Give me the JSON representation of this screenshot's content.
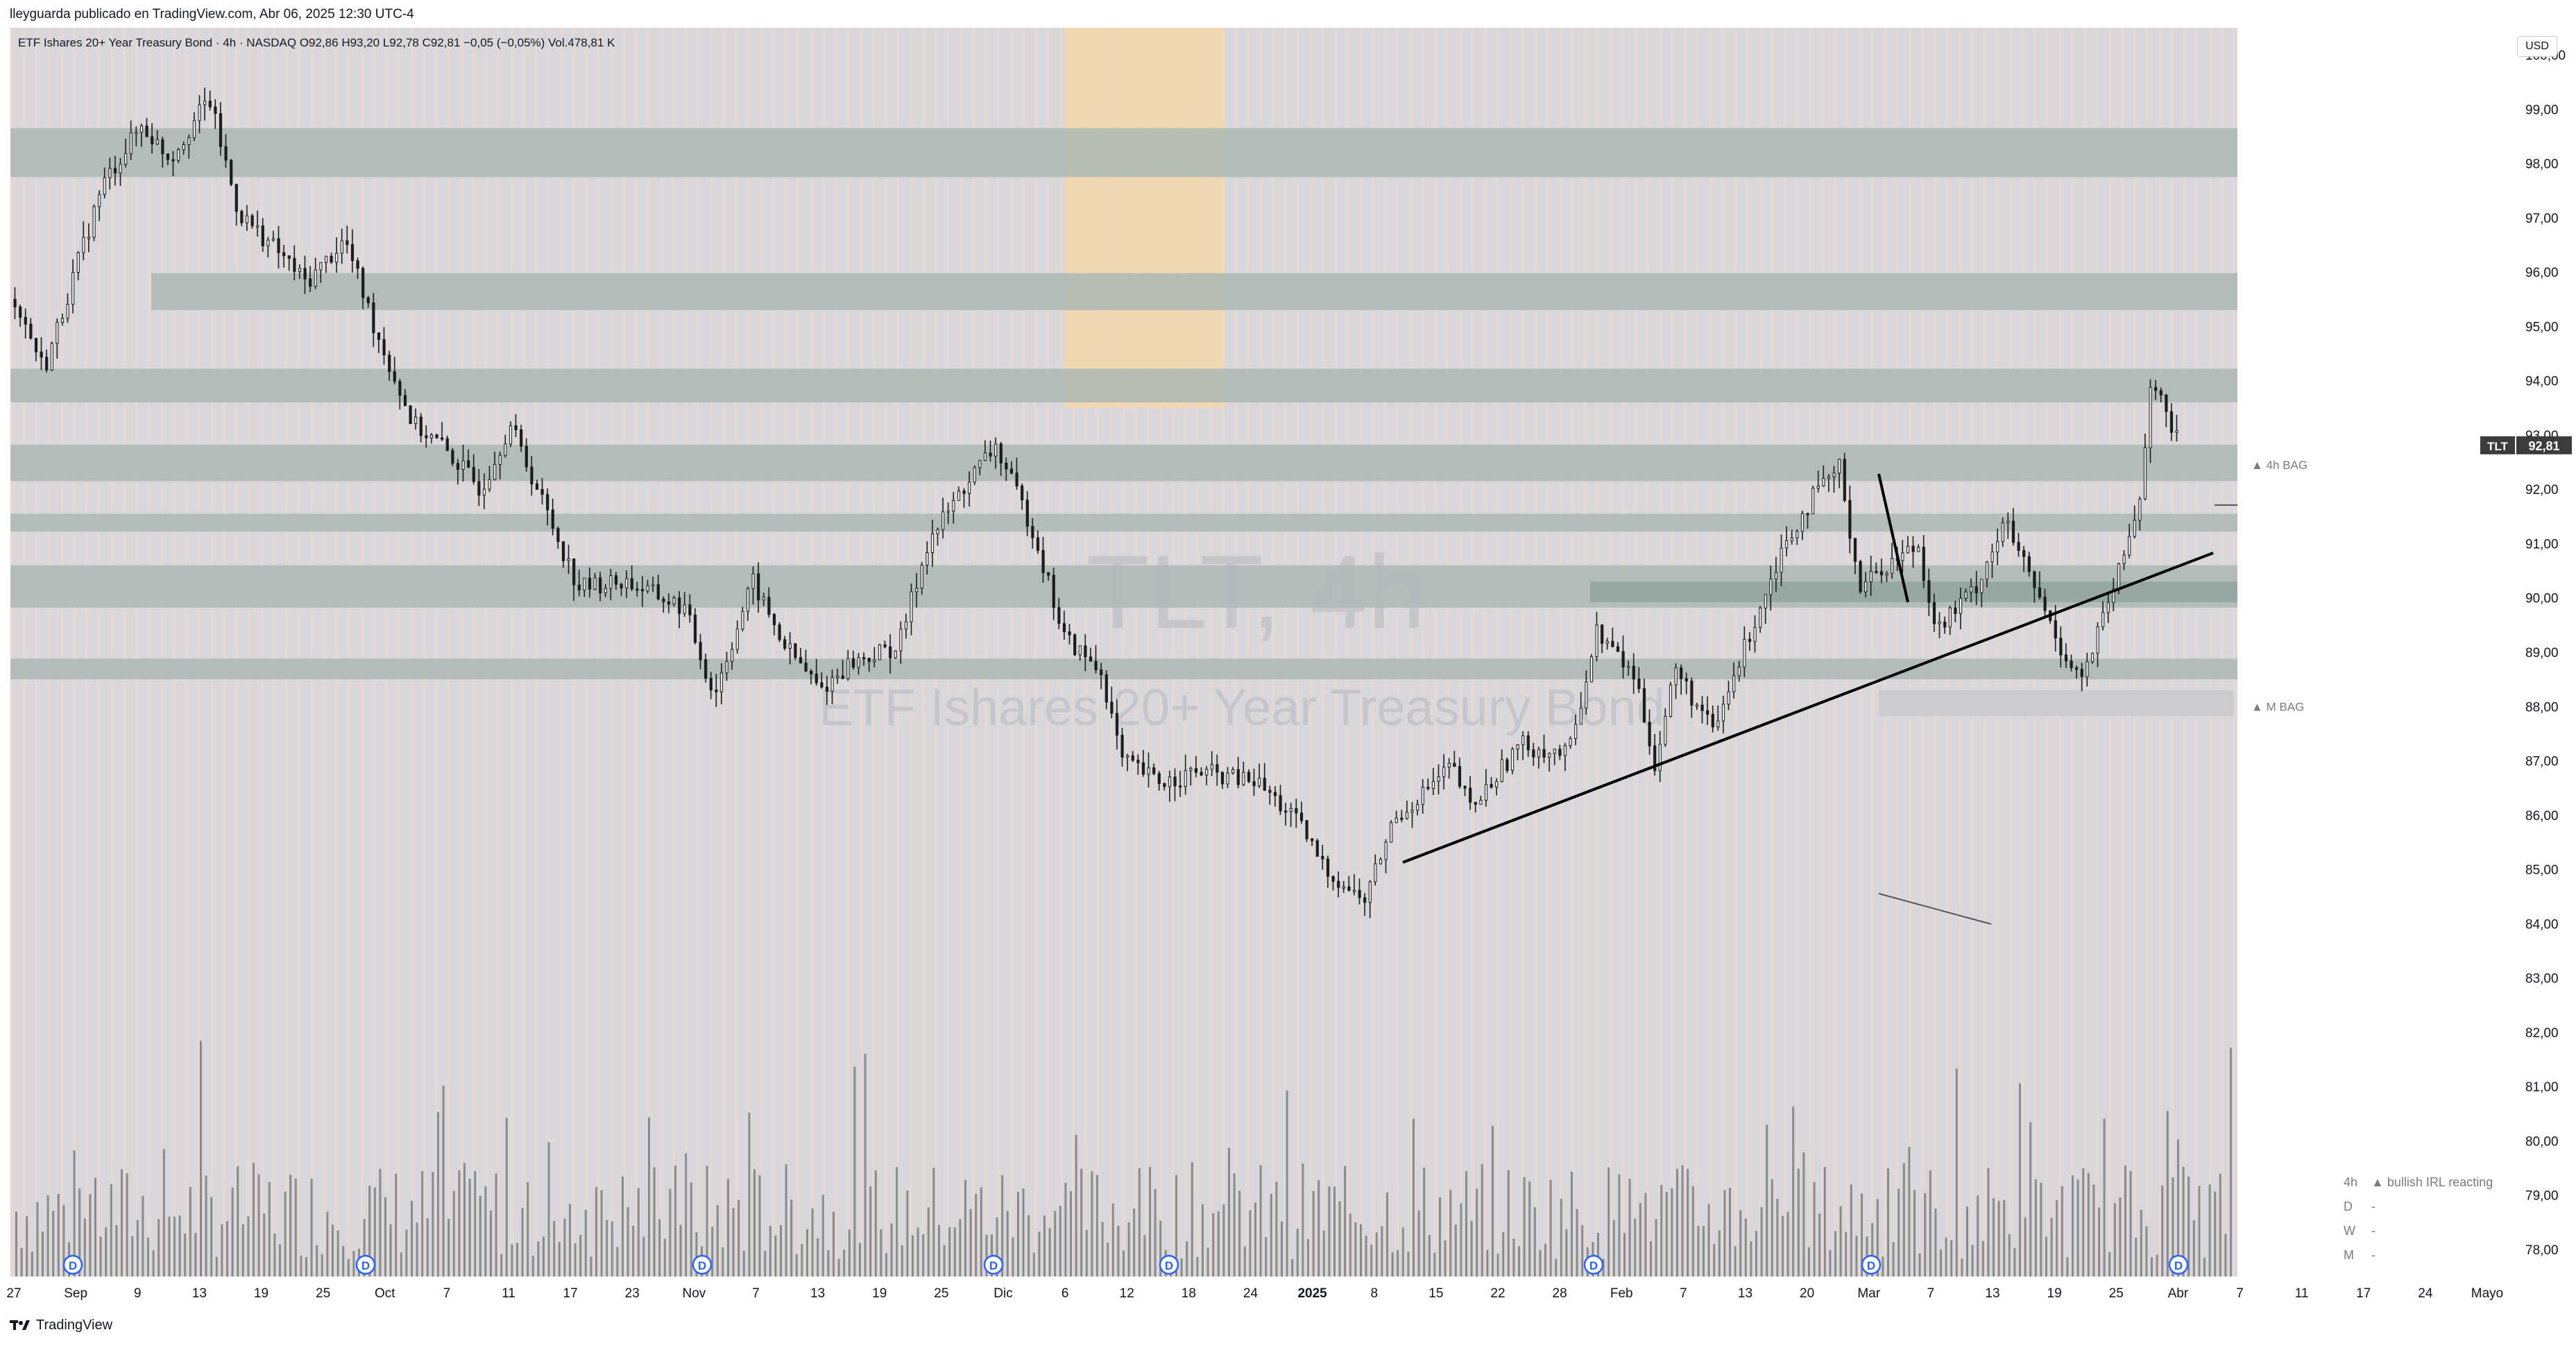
{
  "header": {
    "publisher_line": "lleyguarda publicado en TradingView.com, Abr 06, 2025 12:30 UTC-4"
  },
  "legend": {
    "symbol_line": "ETF Ishares 20+ Year Treasury Bond · 4h · NASDAQ  O92,86  H93,20  L92,78  C92,81  −0,05 (−0,05%)  Vol.478,81 K"
  },
  "watermark": {
    "ticker": "TLT, 4h",
    "name": "ETF Ishares 20+ Year Treasury Bond"
  },
  "price_scale": {
    "currency": "USD",
    "ticks": [
      "100,00",
      "99,00",
      "98,00",
      "97,00",
      "96,00",
      "95,00",
      "94,00",
      "93,00",
      "92,00",
      "91,00",
      "90,00",
      "89,00",
      "88,00",
      "87,00",
      "86,00",
      "85,00",
      "84,00",
      "83,00",
      "82,00",
      "81,00",
      "80,00",
      "79,00",
      "78,00"
    ],
    "last_price_symbol": "TLT",
    "last_price": "92,81"
  },
  "time_scale": {
    "labels": [
      {
        "text": "27",
        "bold": false
      },
      {
        "text": "Sep",
        "bold": false
      },
      {
        "text": "9",
        "bold": false
      },
      {
        "text": "13",
        "bold": false
      },
      {
        "text": "19",
        "bold": false
      },
      {
        "text": "25",
        "bold": false
      },
      {
        "text": "Oct",
        "bold": false
      },
      {
        "text": "7",
        "bold": false
      },
      {
        "text": "11",
        "bold": false
      },
      {
        "text": "17",
        "bold": false
      },
      {
        "text": "23",
        "bold": false
      },
      {
        "text": "Nov",
        "bold": false
      },
      {
        "text": "7",
        "bold": false
      },
      {
        "text": "13",
        "bold": false
      },
      {
        "text": "19",
        "bold": false
      },
      {
        "text": "25",
        "bold": false
      },
      {
        "text": "Dic",
        "bold": false
      },
      {
        "text": "6",
        "bold": false
      },
      {
        "text": "12",
        "bold": false
      },
      {
        "text": "18",
        "bold": false
      },
      {
        "text": "24",
        "bold": false
      },
      {
        "text": "2025",
        "bold": true
      },
      {
        "text": "8",
        "bold": false
      },
      {
        "text": "15",
        "bold": false
      },
      {
        "text": "22",
        "bold": false
      },
      {
        "text": "28",
        "bold": false
      },
      {
        "text": "Feb",
        "bold": false
      },
      {
        "text": "7",
        "bold": false
      },
      {
        "text": "13",
        "bold": false
      },
      {
        "text": "20",
        "bold": false
      },
      {
        "text": "Mar",
        "bold": false
      },
      {
        "text": "7",
        "bold": false
      },
      {
        "text": "13",
        "bold": false
      },
      {
        "text": "19",
        "bold": false
      },
      {
        "text": "25",
        "bold": false
      },
      {
        "text": "Abr",
        "bold": false
      },
      {
        "text": "7",
        "bold": false
      },
      {
        "text": "11",
        "bold": false
      },
      {
        "text": "17",
        "bold": false
      },
      {
        "text": "24",
        "bold": false
      },
      {
        "text": "Mayo",
        "bold": false
      }
    ]
  },
  "dividend_markers": [
    "D",
    "D",
    "D",
    "D",
    "D",
    "D",
    "D",
    "D"
  ],
  "annotations": {
    "bag_4h": "▲ 4h BAG",
    "bag_m": "▲ M BAG"
  },
  "status_table": {
    "rows": [
      {
        "tf": "4h",
        "text": "▲ bullish IRL reacting"
      },
      {
        "tf": "D",
        "text": "-"
      },
      {
        "tf": "W",
        "text": "-"
      },
      {
        "tf": "M",
        "text": "-"
      }
    ]
  },
  "colors": {
    "zone": "#a9b7b3",
    "zone_dark": "#8fa39e",
    "highlight": "#f5d7a6",
    "bg_stripe_a": "#d8d8dc",
    "bg_stripe_b": "#e6d9d0",
    "candle": "#1c1c1c",
    "volume": "#8a8a8a",
    "last_price_bg": "#3c3c3c"
  },
  "footer": {
    "brand": "TradingView"
  },
  "chart_data": {
    "type": "candlestick",
    "title": "TLT, 4h",
    "interval": "4h",
    "y_axis": {
      "min": 77.5,
      "max": 100.5,
      "unit": "USD"
    },
    "price_path": [
      {
        "date": "2024-08-27",
        "price": 95.5
      },
      {
        "date": "2024-08-30",
        "price": 94.2
      },
      {
        "date": "2024-09-05",
        "price": 97.6
      },
      {
        "date": "2024-09-09",
        "price": 98.7
      },
      {
        "date": "2024-09-12",
        "price": 98.1
      },
      {
        "date": "2024-09-16",
        "price": 99.2
      },
      {
        "date": "2024-09-19",
        "price": 97.1
      },
      {
        "date": "2024-09-23",
        "price": 96.4
      },
      {
        "date": "2024-09-26",
        "price": 95.8
      },
      {
        "date": "2024-09-30",
        "price": 96.6
      },
      {
        "date": "2024-10-03",
        "price": 95.0
      },
      {
        "date": "2024-10-07",
        "price": 93.2
      },
      {
        "date": "2024-10-10",
        "price": 92.8
      },
      {
        "date": "2024-10-14",
        "price": 92.0
      },
      {
        "date": "2024-10-17",
        "price": 93.2
      },
      {
        "date": "2024-10-21",
        "price": 91.5
      },
      {
        "date": "2024-10-24",
        "price": 90.2
      },
      {
        "date": "2024-10-29",
        "price": 90.3
      },
      {
        "date": "2024-11-04",
        "price": 89.8
      },
      {
        "date": "2024-11-07",
        "price": 88.2
      },
      {
        "date": "2024-11-11",
        "price": 90.3
      },
      {
        "date": "2024-11-14",
        "price": 89.2
      },
      {
        "date": "2024-11-18",
        "price": 88.3
      },
      {
        "date": "2024-11-21",
        "price": 88.8
      },
      {
        "date": "2024-11-26",
        "price": 89.1
      },
      {
        "date": "2024-11-29",
        "price": 91.0
      },
      {
        "date": "2024-12-03",
        "price": 92.1
      },
      {
        "date": "2024-12-06",
        "price": 92.8
      },
      {
        "date": "2024-12-10",
        "price": 91.2
      },
      {
        "date": "2024-12-13",
        "price": 89.3
      },
      {
        "date": "2024-12-17",
        "price": 88.6
      },
      {
        "date": "2024-12-19",
        "price": 87.0
      },
      {
        "date": "2024-12-23",
        "price": 86.6
      },
      {
        "date": "2024-12-27",
        "price": 86.8
      },
      {
        "date": "2025-01-02",
        "price": 86.6
      },
      {
        "date": "2025-01-06",
        "price": 85.9
      },
      {
        "date": "2025-01-09",
        "price": 85.0
      },
      {
        "date": "2025-01-13",
        "price": 84.4
      },
      {
        "date": "2025-01-16",
        "price": 85.9
      },
      {
        "date": "2025-01-22",
        "price": 86.9
      },
      {
        "date": "2025-01-24",
        "price": 86.1
      },
      {
        "date": "2025-01-29",
        "price": 87.3
      },
      {
        "date": "2025-02-03",
        "price": 87.1
      },
      {
        "date": "2025-02-06",
        "price": 89.4
      },
      {
        "date": "2025-02-10",
        "price": 88.5
      },
      {
        "date": "2025-02-12",
        "price": 86.9
      },
      {
        "date": "2025-02-14",
        "price": 88.7
      },
      {
        "date": "2025-02-18",
        "price": 87.5
      },
      {
        "date": "2025-02-21",
        "price": 89.0
      },
      {
        "date": "2025-02-25",
        "price": 90.9
      },
      {
        "date": "2025-02-28",
        "price": 91.8
      },
      {
        "date": "2025-03-03",
        "price": 92.4
      },
      {
        "date": "2025-03-05",
        "price": 90.2
      },
      {
        "date": "2025-03-07",
        "price": 90.5
      },
      {
        "date": "2025-03-11",
        "price": 91.0
      },
      {
        "date": "2025-03-13",
        "price": 89.4
      },
      {
        "date": "2025-03-17",
        "price": 90.2
      },
      {
        "date": "2025-03-20",
        "price": 91.4
      },
      {
        "date": "2025-03-24",
        "price": 89.8
      },
      {
        "date": "2025-03-26",
        "price": 89.0
      },
      {
        "date": "2025-03-28",
        "price": 88.5
      },
      {
        "date": "2025-04-01",
        "price": 90.6
      },
      {
        "date": "2025-04-03",
        "price": 91.9
      },
      {
        "date": "2025-04-04",
        "price": 94.0
      },
      {
        "date": "2025-04-07",
        "price": 92.81
      }
    ],
    "volume_peaks": [
      1.0,
      0.6,
      0.9,
      0.5,
      0.7,
      0.8,
      1.0,
      0.6
    ]
  }
}
